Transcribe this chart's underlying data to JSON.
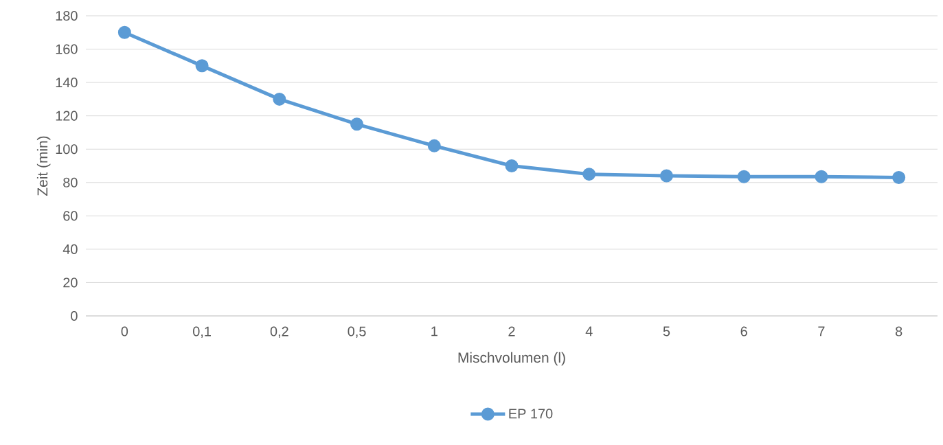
{
  "chart_data": {
    "type": "line",
    "xlabel": "Mischvolumen (l)",
    "ylabel": "Zeit (min)",
    "categories": [
      "0",
      "0,1",
      "0,2",
      "0,5",
      "1",
      "2",
      "4",
      "5",
      "6",
      "7",
      "8"
    ],
    "series": [
      {
        "name": "EP 170",
        "color": "#5b9bd5",
        "values": [
          170,
          150,
          130,
          115,
          102,
          90,
          85,
          84,
          83.5,
          83.5,
          83
        ]
      }
    ],
    "ylim": [
      0,
      180
    ],
    "yticks": [
      0,
      20,
      40,
      60,
      80,
      100,
      120,
      140,
      160,
      180
    ],
    "grid": "y",
    "legend": "bottom",
    "marker": "circle",
    "line_style": "solid"
  }
}
